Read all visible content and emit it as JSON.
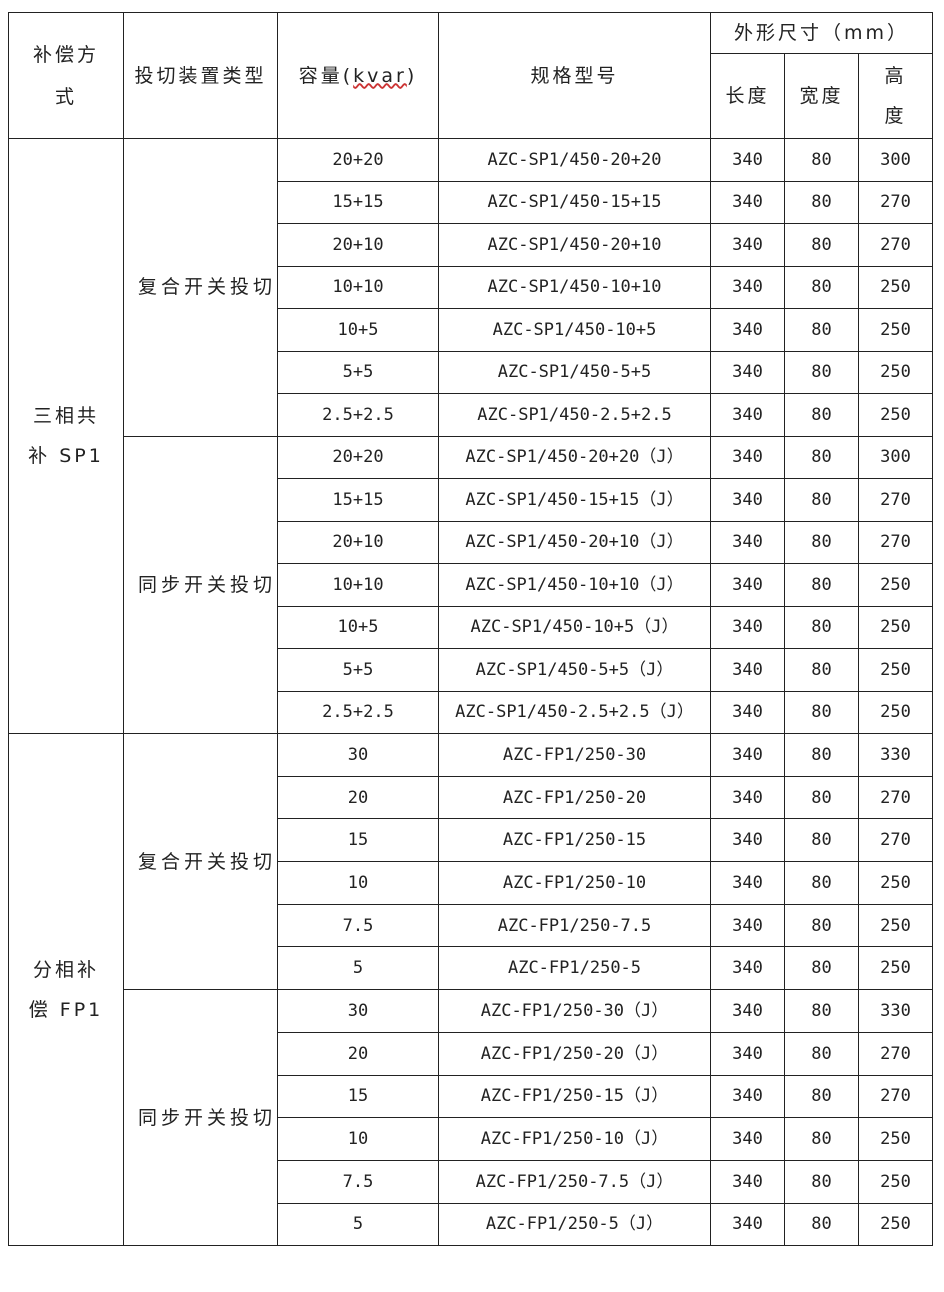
{
  "headers": {
    "method": "补偿方式",
    "switch_type": "投切装置类型",
    "capacity_prefix": "容量(",
    "capacity_unit": "kvar",
    "capacity_suffix": ")",
    "model": "规格型号",
    "dimensions": "外形尺寸（mm）",
    "length": "长度",
    "width": "宽度",
    "height": "高度"
  },
  "sections": [
    {
      "method": "三相共补 SP1",
      "groups": [
        {
          "switch_type": "复合开关投切",
          "rows": [
            [
              "20+20",
              "AZC-SP1/450-20+20",
              "340",
              "80",
              "300"
            ],
            [
              "15+15",
              "AZC-SP1/450-15+15",
              "340",
              "80",
              "270"
            ],
            [
              "20+10",
              "AZC-SP1/450-20+10",
              "340",
              "80",
              "270"
            ],
            [
              "10+10",
              "AZC-SP1/450-10+10",
              "340",
              "80",
              "250"
            ],
            [
              "10+5",
              "AZC-SP1/450-10+5",
              "340",
              "80",
              "250"
            ],
            [
              "5+5",
              "AZC-SP1/450-5+5",
              "340",
              "80",
              "250"
            ],
            [
              "2.5+2.5",
              "AZC-SP1/450-2.5+2.5",
              "340",
              "80",
              "250"
            ]
          ]
        },
        {
          "switch_type": "同步开关投切",
          "rows": [
            [
              "20+20",
              "AZC-SP1/450-20+20（J）",
              "340",
              "80",
              "300"
            ],
            [
              "15+15",
              "AZC-SP1/450-15+15（J）",
              "340",
              "80",
              "270"
            ],
            [
              "20+10",
              "AZC-SP1/450-20+10（J）",
              "340",
              "80",
              "270"
            ],
            [
              "10+10",
              "AZC-SP1/450-10+10（J）",
              "340",
              "80",
              "250"
            ],
            [
              "10+5",
              "AZC-SP1/450-10+5（J）",
              "340",
              "80",
              "250"
            ],
            [
              "5+5",
              "AZC-SP1/450-5+5（J）",
              "340",
              "80",
              "250"
            ],
            [
              "2.5+2.5",
              "AZC-SP1/450-2.5+2.5（J）",
              "340",
              "80",
              "250"
            ]
          ]
        }
      ]
    },
    {
      "method": "分相补偿 FP1",
      "groups": [
        {
          "switch_type": "复合开关投切",
          "rows": [
            [
              "30",
              "AZC-FP1/250-30",
              "340",
              "80",
              "330"
            ],
            [
              "20",
              "AZC-FP1/250-20",
              "340",
              "80",
              "270"
            ],
            [
              "15",
              "AZC-FP1/250-15",
              "340",
              "80",
              "270"
            ],
            [
              "10",
              "AZC-FP1/250-10",
              "340",
              "80",
              "250"
            ],
            [
              "7.5",
              "AZC-FP1/250-7.5",
              "340",
              "80",
              "250"
            ],
            [
              "5",
              "AZC-FP1/250-5",
              "340",
              "80",
              "250"
            ]
          ]
        },
        {
          "switch_type": "同步开关投切",
          "rows": [
            [
              "30",
              "AZC-FP1/250-30（J）",
              "340",
              "80",
              "330"
            ],
            [
              "20",
              "AZC-FP1/250-20（J）",
              "340",
              "80",
              "270"
            ],
            [
              "15",
              "AZC-FP1/250-15（J）",
              "340",
              "80",
              "270"
            ],
            [
              "10",
              "AZC-FP1/250-10（J）",
              "340",
              "80",
              "250"
            ],
            [
              "7.5",
              "AZC-FP1/250-7.5（J）",
              "340",
              "80",
              "250"
            ],
            [
              "5",
              "AZC-FP1/250-5（J）",
              "340",
              "80",
              "250"
            ]
          ]
        }
      ]
    }
  ]
}
